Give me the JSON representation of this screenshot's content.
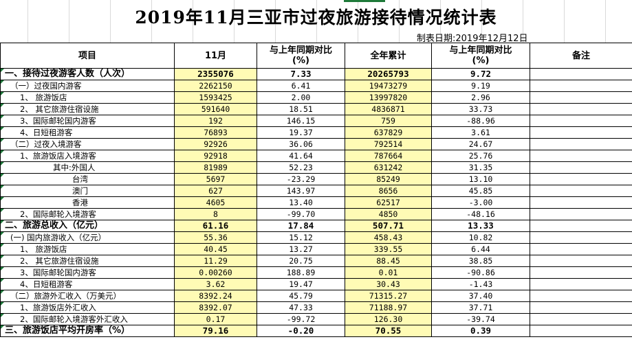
{
  "title": "2019年11月三亚市过夜旅游接待情况统计表",
  "date_label": "制表日期:2019年12月12日",
  "header": {
    "item": "项目",
    "month": "11月",
    "yoy1_line1": "与上年同期对比",
    "yoy1_line2": "(%)",
    "cumulative": "全年累计",
    "yoy2_line1": "与上年同期对比",
    "yoy2_line2": "(%)",
    "remark": "备注"
  },
  "rows": [
    {
      "label": "一、接待过夜游客人数（人次）",
      "month": "2355076",
      "yoy1": "7.33",
      "cum": "20265793",
      "yoy2": "9.72",
      "bold": true,
      "indent": 0
    },
    {
      "label": "（一）过夜国内游客",
      "month": "2262150",
      "yoy1": "6.41",
      "cum": "19473279",
      "yoy2": "9.19",
      "indent": 1
    },
    {
      "label": "1、 旅游饭店",
      "month": "1593425",
      "yoy1": "2.00",
      "cum": "13997820",
      "yoy2": "2.96",
      "indent": 2
    },
    {
      "label": "2、 其它旅游住宿设施",
      "month": "591640",
      "yoy1": "18.51",
      "cum": "4836871",
      "yoy2": "33.73",
      "indent": 2
    },
    {
      "label": "3、国际邮轮国内游客",
      "month": "192",
      "yoy1": "146.15",
      "cum": "759",
      "yoy2": "-88.96",
      "indent": 2
    },
    {
      "label": "4、日短租游客",
      "month": "76893",
      "yoy1": "19.37",
      "cum": "637829",
      "yoy2": "3.61",
      "indent": 2
    },
    {
      "label": "（二）过夜入境游客",
      "month": "92926",
      "yoy1": "36.06",
      "cum": "792514",
      "yoy2": "24.67",
      "indent": 1
    },
    {
      "label": "1、旅游饭店入境游客",
      "month": "92918",
      "yoy1": "41.64",
      "cum": "787664",
      "yoy2": "25.76",
      "indent": 2
    },
    {
      "label": "其中:外国人",
      "month": "81989",
      "yoy1": "52.23",
      "cum": "631242",
      "yoy2": "31.35",
      "indent": 3
    },
    {
      "label": "台湾",
      "month": "5697",
      "yoy1": "-23.29",
      "cum": "85249",
      "yoy2": "13.10",
      "indent": 4
    },
    {
      "label": "澳门",
      "month": "627",
      "yoy1": "143.97",
      "cum": "8656",
      "yoy2": "45.85",
      "indent": 4
    },
    {
      "label": "香港",
      "month": "4605",
      "yoy1": "13.40",
      "cum": "62517",
      "yoy2": "-3.00",
      "indent": 4
    },
    {
      "label": "2、国际邮轮入境游客",
      "month": "8",
      "yoy1": "-99.70",
      "cum": "4850",
      "yoy2": "-48.16",
      "indent": 2
    },
    {
      "label": "二、旅游总收入（亿元）",
      "month": "61.16",
      "yoy1": "17.84",
      "cum": "507.71",
      "yoy2": "13.33",
      "bold": true,
      "indent": 0
    },
    {
      "label": "(一) 国内旅游收入（亿元）",
      "month": "55.36",
      "yoy1": "15.12",
      "cum": "458.43",
      "yoy2": "10.82",
      "indent": 1
    },
    {
      "label": "1、 旅游饭店",
      "month": "40.45",
      "yoy1": "13.27",
      "cum": "339.55",
      "yoy2": "6.44",
      "indent": 2
    },
    {
      "label": "2、 其它旅游住宿设施",
      "month": "11.29",
      "yoy1": "20.75",
      "cum": "88.45",
      "yoy2": "38.85",
      "indent": 2
    },
    {
      "label": "3、国际邮轮国内游客",
      "month": "0.00260",
      "yoy1": "188.89",
      "cum": "0.01",
      "yoy2": "-90.86",
      "indent": 2
    },
    {
      "label": "4、日短租游客",
      "month": "3.62",
      "yoy1": "19.47",
      "cum": "30.43",
      "yoy2": "-1.43",
      "indent": 2
    },
    {
      "label": "（二）旅游外汇收入（万美元）",
      "month": "8392.24",
      "yoy1": "45.79",
      "cum": "71315.27",
      "yoy2": "37.40",
      "indent": 1
    },
    {
      "label": "1、旅游饭店外汇收入",
      "month": "8392.07",
      "yoy1": "47.33",
      "cum": "71188.97",
      "yoy2": "37.71",
      "indent": 2
    },
    {
      "label": "2、国际邮轮入境游客外汇收入",
      "month": "0.17",
      "yoy1": "-99.72",
      "cum": "126.30",
      "yoy2": "-39.74",
      "indent": 2
    },
    {
      "label": "三、旅游饭店平均开房率（%）",
      "month": "79.16",
      "yoy1": "-0.20",
      "cum": "70.55",
      "yoy2": "0.39",
      "bold": true,
      "indent": 0
    }
  ],
  "colors": {
    "highlight": "#fffbb5",
    "comment_marker": "#1e7b3b"
  }
}
